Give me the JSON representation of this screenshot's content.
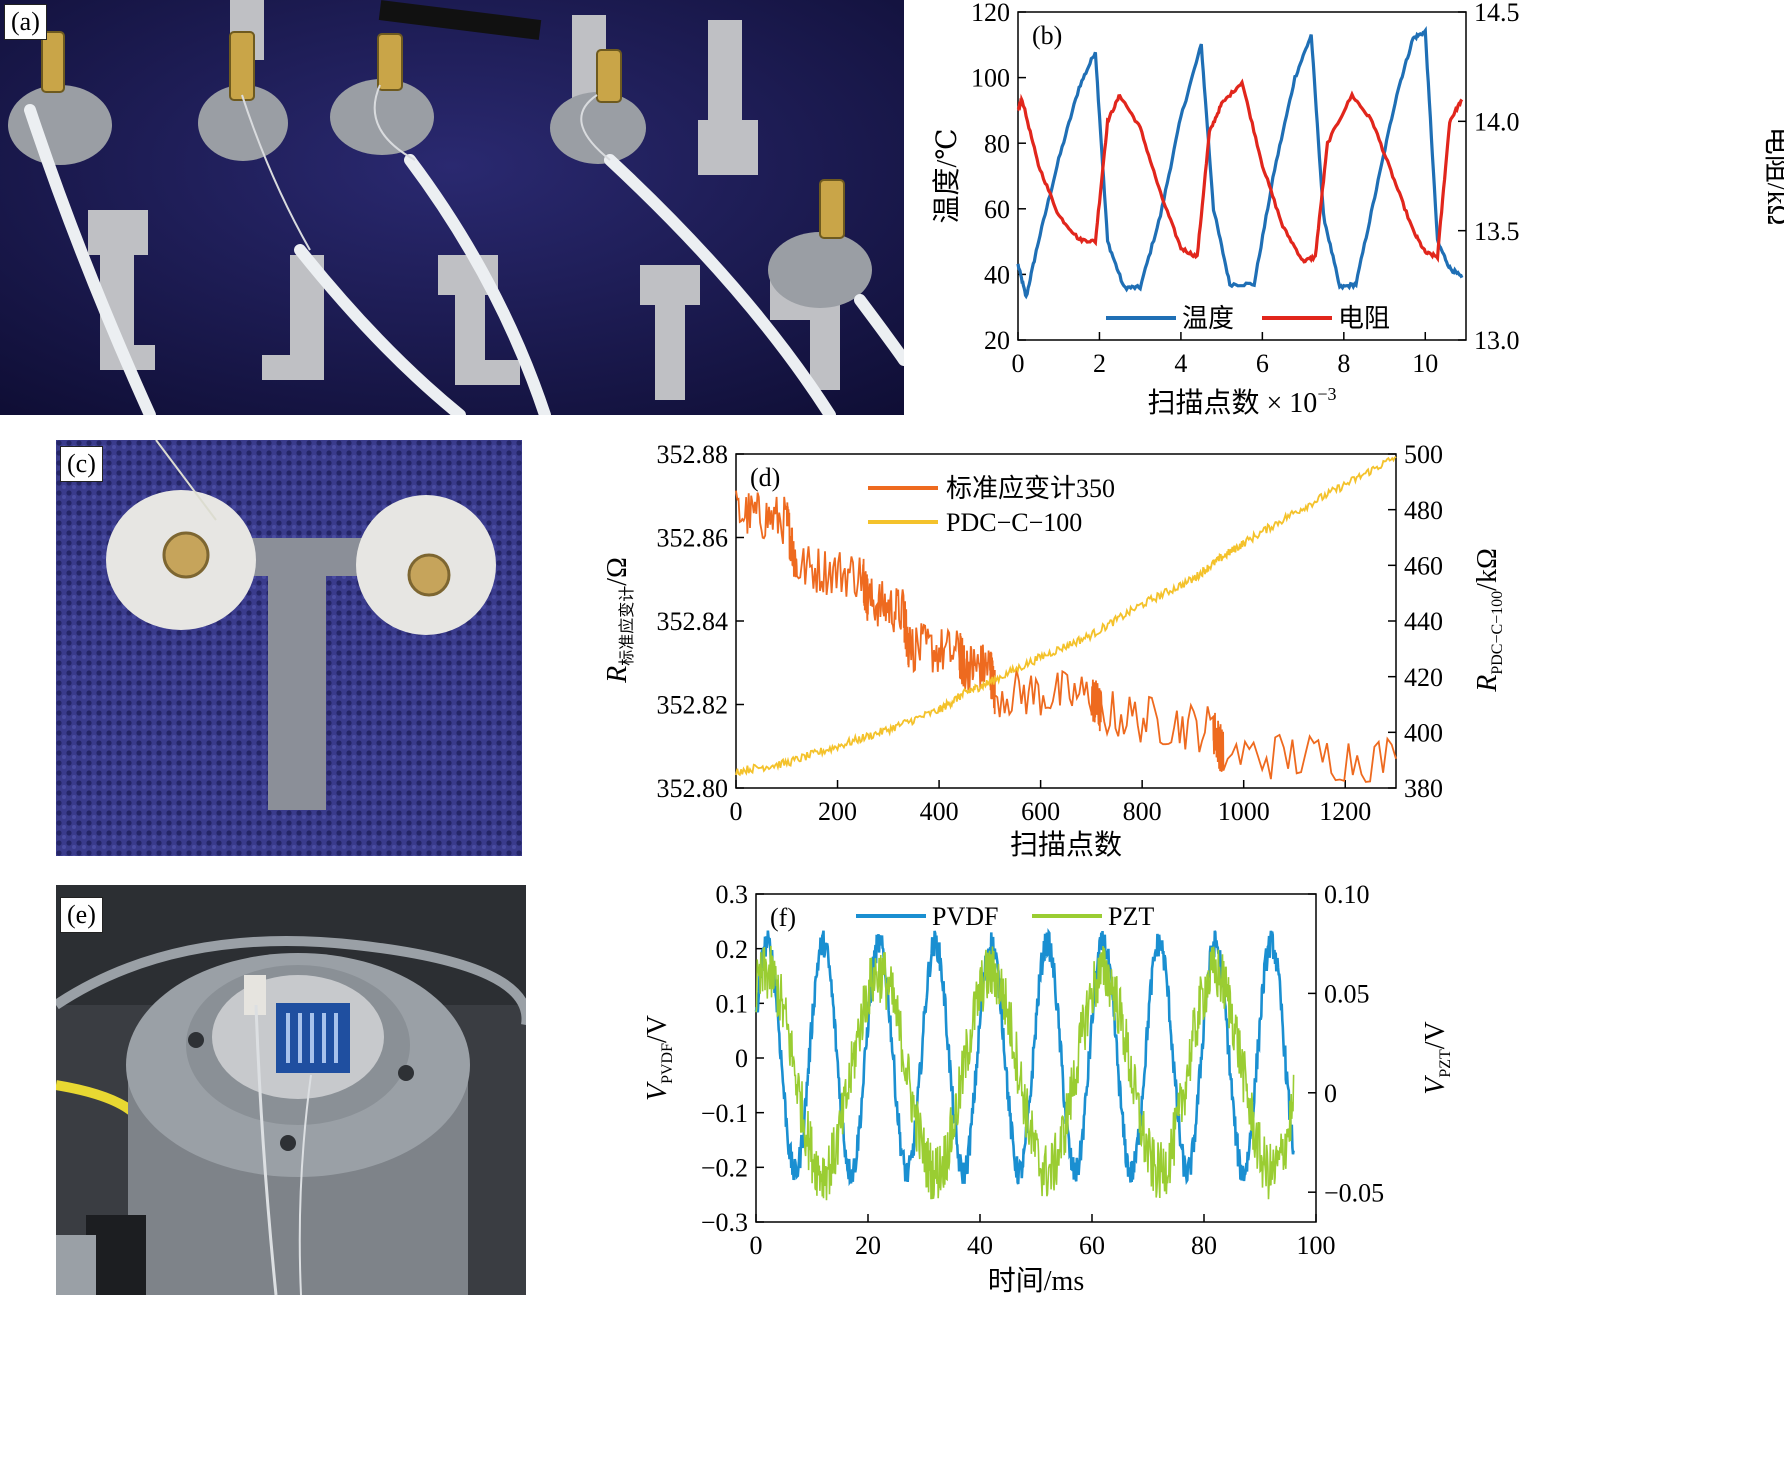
{
  "photos": {
    "a": {
      "tag": "(a)"
    },
    "c": {
      "tag": "(c)"
    },
    "e": {
      "tag": "(e)"
    }
  },
  "colors": {
    "blue": "#1f6fb5",
    "red": "#e1261c",
    "orange": "#ee6a1f",
    "yellow": "#f4c22b",
    "green": "#9acd32",
    "pvdf_blue": "#1a8fd1",
    "substrate": "#1e1d5a",
    "silver": "#c8c9cd"
  },
  "chart_data": [
    {
      "id": "b",
      "panel_label": "(b)",
      "type": "line",
      "xlabel": "扫描点数 × 10",
      "xlabel_exp": "−3",
      "ylabel_left": "温度/℃",
      "ylabel_right": "电阻/kΩ",
      "xlim": [
        0,
        11
      ],
      "ylim_left": [
        20,
        120
      ],
      "ylim_right": [
        13.0,
        14.5
      ],
      "x_ticks": [
        "0",
        "2",
        "4",
        "6",
        "8",
        "10"
      ],
      "y_ticks_left": [
        "20",
        "40",
        "60",
        "80",
        "100",
        "120"
      ],
      "y_ticks_right": [
        "13.0",
        "13.5",
        "14.0",
        "14.5"
      ],
      "legend_position": "bottom-center",
      "series": [
        {
          "name": "温度",
          "axis": "left",
          "x": [
            0,
            0.2,
            0.5,
            1.0,
            1.5,
            1.9,
            2.2,
            2.6,
            3.0,
            3.5,
            4.0,
            4.5,
            4.8,
            5.2,
            5.8,
            6.3,
            6.8,
            7.2,
            7.5,
            7.9,
            8.3,
            8.8,
            9.3,
            9.7,
            10.0,
            10.3,
            10.6,
            10.9
          ],
          "y": [
            43,
            33,
            50,
            75,
            97,
            108,
            50,
            36,
            36,
            58,
            88,
            110,
            60,
            37,
            37,
            72,
            100,
            113,
            58,
            36,
            37,
            66,
            95,
            112,
            114,
            50,
            42,
            39
          ]
        },
        {
          "name": "电阻",
          "axis": "right",
          "x": [
            0,
            0.1,
            0.5,
            1.0,
            1.5,
            1.9,
            2.2,
            2.5,
            3.0,
            3.5,
            4.0,
            4.4,
            4.7,
            5.0,
            5.5,
            6.0,
            6.5,
            7.0,
            7.3,
            7.6,
            8.2,
            8.7,
            9.2,
            9.7,
            10.0,
            10.3,
            10.6,
            10.9
          ],
          "y": [
            14.05,
            14.1,
            13.8,
            13.57,
            13.46,
            13.45,
            14.0,
            14.12,
            13.97,
            13.67,
            13.42,
            13.38,
            13.95,
            14.08,
            14.18,
            13.8,
            13.52,
            13.36,
            13.38,
            13.9,
            14.12,
            14.0,
            13.75,
            13.5,
            13.4,
            13.38,
            14.0,
            14.1
          ]
        }
      ]
    },
    {
      "id": "d",
      "panel_label": "(d)",
      "type": "line",
      "xlabel": "扫描点数",
      "ylabel_left": "R",
      "ylabel_left_sub": "标准应变计",
      "ylabel_left_unit": "/Ω",
      "ylabel_right": "R",
      "ylabel_right_sub": "PDC−C−100",
      "ylabel_right_unit": "/kΩ",
      "xlim": [
        0,
        1300
      ],
      "ylim_left": [
        352.8,
        352.88
      ],
      "ylim_right": [
        380,
        500
      ],
      "x_ticks": [
        "0",
        "200",
        "400",
        "600",
        "800",
        "1000",
        "1200"
      ],
      "y_ticks_left": [
        "352.80",
        "352.82",
        "352.84",
        "352.86",
        "352.88"
      ],
      "y_ticks_right": [
        "380",
        "400",
        "420",
        "440",
        "460",
        "480",
        "500"
      ],
      "legend_position": "top-left",
      "series": [
        {
          "name": "标准应变计350",
          "axis": "left",
          "x": [
            0,
            100,
            120,
            250,
            260,
            330,
            340,
            440,
            450,
            500,
            510,
            700,
            720,
            940,
            960,
            1300
          ],
          "y": [
            352.866,
            352.864,
            352.853,
            352.851,
            352.845,
            352.842,
            352.834,
            352.832,
            352.829,
            352.829,
            352.823,
            352.822,
            352.818,
            352.814,
            352.808,
            352.807
          ]
        },
        {
          "name": "PDC−C−100",
          "axis": "right",
          "x": [
            0,
            100,
            200,
            300,
            400,
            450,
            500,
            600,
            700,
            800,
            900,
            950,
            1000,
            1100,
            1200,
            1300
          ],
          "y": [
            386,
            389,
            395,
            401,
            408,
            414,
            418,
            427,
            435,
            446,
            455,
            462,
            468,
            479,
            489,
            499
          ]
        }
      ]
    },
    {
      "id": "f",
      "panel_label": "(f)",
      "type": "line",
      "xlabel": "时间/ms",
      "ylabel_left": "V",
      "ylabel_left_sub": "PVDF",
      "ylabel_left_unit": "/V",
      "ylabel_right": "V",
      "ylabel_right_sub": "PZT",
      "ylabel_right_unit": "/V",
      "xlim": [
        0,
        100
      ],
      "ylim_left": [
        -0.3,
        0.3
      ],
      "ylim_right": [
        -0.065,
        0.1
      ],
      "x_ticks": [
        "0",
        "20",
        "40",
        "60",
        "80",
        "100"
      ],
      "y_ticks_left": [
        "−0.3",
        "−0.2",
        "−0.1",
        "0",
        "0.1",
        "0.2",
        "0.3"
      ],
      "y_ticks_right": [
        "−0.05",
        "0",
        "0.05",
        "0.10"
      ],
      "legend_position": "top",
      "series": [
        {
          "name": "PVDF",
          "axis": "left",
          "period_ms": 10,
          "amplitude": 0.21,
          "phase_ms": 0.5,
          "duration_ms": 96
        },
        {
          "name": "PZT",
          "axis": "right",
          "period_ms": 20,
          "amplitude": 0.05,
          "offset": 0.01,
          "phase_ms": 3,
          "duration_ms": 96
        }
      ]
    }
  ]
}
